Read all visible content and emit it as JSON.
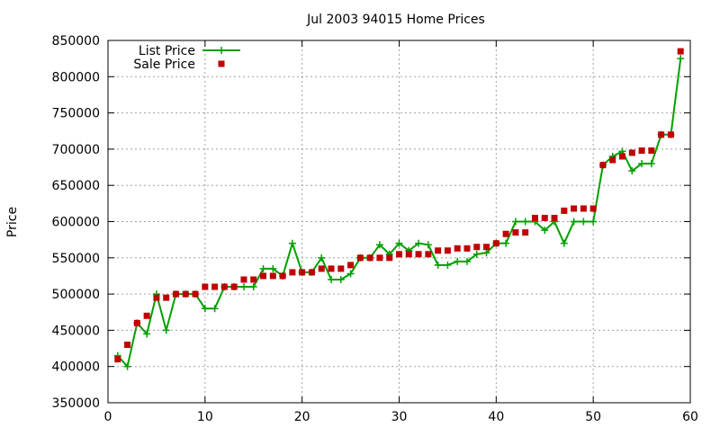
{
  "chart_data": {
    "type": "line",
    "title": "Jul 2003 94015 Home Prices",
    "xlabel": "",
    "ylabel": "Price",
    "xlim": [
      0,
      60
    ],
    "ylim": [
      350000,
      850000
    ],
    "x_ticks": [
      0,
      10,
      20,
      30,
      40,
      50,
      60
    ],
    "y_ticks": [
      350000,
      400000,
      450000,
      500000,
      550000,
      600000,
      650000,
      700000,
      750000,
      800000,
      850000
    ],
    "grid": true,
    "legend_position": "top-left",
    "series": [
      {
        "name": "List Price",
        "style": "line+plus",
        "color": "#00a000",
        "x": [
          1,
          2,
          3,
          4,
          5,
          6,
          7,
          8,
          9,
          10,
          11,
          12,
          13,
          14,
          15,
          16,
          17,
          18,
          19,
          20,
          21,
          22,
          23,
          24,
          25,
          26,
          27,
          28,
          29,
          30,
          31,
          32,
          33,
          34,
          35,
          36,
          37,
          38,
          39,
          40,
          41,
          42,
          43,
          44,
          45,
          46,
          47,
          48,
          49,
          50,
          51,
          52,
          53,
          54,
          55,
          56,
          57,
          58,
          59
        ],
        "y": [
          415000,
          400000,
          460000,
          445000,
          500000,
          450000,
          500000,
          500000,
          500000,
          480000,
          480000,
          510000,
          510000,
          510000,
          510000,
          535000,
          535000,
          525000,
          570000,
          530000,
          530000,
          550000,
          520000,
          520000,
          528000,
          550000,
          550000,
          568000,
          555000,
          570000,
          560000,
          570000,
          568000,
          540000,
          540000,
          545000,
          545000,
          555000,
          557000,
          570000,
          570000,
          600000,
          600000,
          600000,
          588000,
          600000,
          570000,
          600000,
          600000,
          600000,
          678000,
          690000,
          697000,
          670000,
          680000,
          680000,
          720000,
          720000,
          825000
        ]
      },
      {
        "name": "Sale Price",
        "style": "square-markers",
        "color": "#c00000",
        "x": [
          1,
          2,
          3,
          4,
          5,
          6,
          7,
          8,
          9,
          10,
          11,
          12,
          13,
          14,
          15,
          16,
          17,
          18,
          19,
          20,
          21,
          22,
          23,
          24,
          25,
          26,
          27,
          28,
          29,
          30,
          31,
          32,
          33,
          34,
          35,
          36,
          37,
          38,
          39,
          40,
          41,
          42,
          43,
          44,
          45,
          46,
          47,
          48,
          49,
          50,
          51,
          52,
          53,
          54,
          55,
          56,
          57,
          58,
          59
        ],
        "y": [
          410000,
          430000,
          460000,
          470000,
          495000,
          495000,
          500000,
          500000,
          500000,
          510000,
          510000,
          510000,
          510000,
          520000,
          520000,
          525000,
          525000,
          525000,
          530000,
          530000,
          530000,
          535000,
          535000,
          535000,
          540000,
          550000,
          550000,
          550000,
          550000,
          555000,
          555000,
          555000,
          555000,
          560000,
          560000,
          563000,
          563000,
          565000,
          565000,
          570000,
          583000,
          585000,
          585000,
          605000,
          605000,
          605000,
          615000,
          618000,
          618000,
          618000,
          678000,
          685000,
          690000,
          695000,
          698000,
          698000,
          720000,
          720000,
          835000
        ]
      }
    ]
  }
}
